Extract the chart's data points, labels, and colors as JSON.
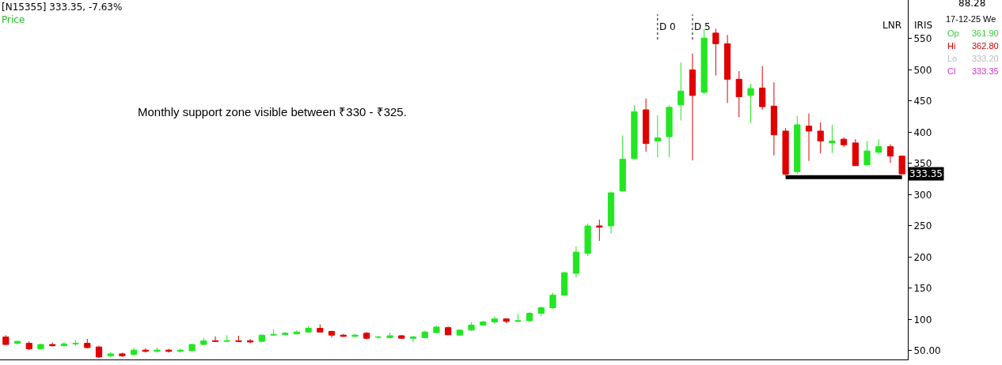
{
  "chart_data": {
    "type": "candlestick",
    "title": "[N15355] 333.35, -7.63%",
    "subtitle": "Price",
    "categories": [
      null,
      null,
      null,
      null,
      null,
      null,
      null,
      null,
      null,
      null,
      null,
      null,
      null,
      null,
      null,
      null,
      null,
      null,
      null,
      null,
      null,
      null,
      null,
      null,
      null,
      null,
      null,
      null,
      null,
      null,
      null,
      null,
      null,
      null,
      null,
      null,
      null,
      null,
      null,
      null,
      null,
      null,
      null,
      null,
      null,
      null,
      null,
      null,
      null,
      null,
      null,
      null,
      null,
      null,
      null,
      null,
      null,
      null,
      null,
      null,
      null,
      null,
      null,
      null,
      null,
      null,
      null,
      null,
      null,
      null,
      null,
      null,
      null,
      null,
      null,
      null,
      null,
      null
    ],
    "ohlc": [
      [
        72,
        75,
        59,
        60
      ],
      [
        62,
        66,
        60,
        65
      ],
      [
        62,
        65,
        51,
        53
      ],
      [
        53,
        61,
        52,
        60
      ],
      [
        60,
        63,
        57,
        58
      ],
      [
        58,
        64,
        57,
        61
      ],
      [
        61,
        67,
        58,
        62
      ],
      [
        62,
        69,
        54,
        55
      ],
      [
        56,
        58,
        38,
        40
      ],
      [
        42,
        48,
        40,
        45
      ],
      [
        45,
        47,
        40,
        42
      ],
      [
        44,
        55,
        42,
        51
      ],
      [
        51,
        54,
        47,
        49
      ],
      [
        49,
        55,
        47,
        51
      ],
      [
        51,
        53,
        47,
        49
      ],
      [
        49,
        53,
        47,
        51
      ],
      [
        50,
        61,
        49,
        60
      ],
      [
        60,
        71,
        59,
        66
      ],
      [
        66,
        73,
        64,
        65
      ],
      [
        65,
        75,
        64,
        66
      ],
      [
        66,
        74,
        64,
        65
      ],
      [
        66,
        69,
        62,
        64
      ],
      [
        65,
        76,
        64,
        75
      ],
      [
        75,
        84,
        74,
        76
      ],
      [
        76,
        80,
        75,
        78
      ],
      [
        77,
        83,
        76,
        80
      ],
      [
        80,
        89,
        79,
        86
      ],
      [
        86,
        92,
        79,
        80
      ],
      [
        81,
        82,
        71,
        75
      ],
      [
        75,
        77,
        72,
        73
      ],
      [
        73,
        77,
        72,
        75
      ],
      [
        78,
        80,
        68,
        70
      ],
      [
        71.5,
        74,
        70,
        72
      ],
      [
        71,
        79,
        71,
        74
      ],
      [
        74,
        75,
        69,
        70
      ],
      [
        70,
        74,
        64,
        72
      ],
      [
        71,
        82,
        70,
        80
      ],
      [
        79,
        90,
        78,
        88
      ],
      [
        87,
        89,
        75,
        75.5
      ],
      [
        75,
        84,
        74,
        83
      ],
      [
        83,
        96,
        82,
        91
      ],
      [
        91,
        98,
        90,
        96
      ],
      [
        96,
        105,
        93,
        101
      ],
      [
        101,
        102,
        94,
        97
      ],
      [
        97,
        109,
        97,
        98
      ],
      [
        98,
        112,
        97,
        110
      ],
      [
        110,
        121,
        105,
        119
      ],
      [
        119,
        143,
        117,
        139
      ],
      [
        139,
        177,
        138,
        175
      ],
      [
        174,
        217,
        167,
        208
      ],
      [
        206,
        254,
        202,
        250
      ],
      [
        250,
        260,
        226,
        248
      ],
      [
        250,
        305,
        238,
        303
      ],
      [
        306,
        395,
        305,
        357
      ],
      [
        358,
        443,
        357,
        433
      ],
      [
        436,
        454,
        369,
        382
      ],
      [
        386,
        427,
        360,
        391
      ],
      [
        393,
        443,
        360,
        440
      ],
      [
        444,
        512,
        419,
        466
      ],
      [
        500,
        526,
        355,
        459
      ],
      [
        464,
        566,
        461,
        551
      ],
      [
        559,
        566,
        491,
        542
      ],
      [
        542,
        556,
        447,
        485
      ],
      [
        485,
        498,
        424,
        457
      ],
      [
        459,
        478,
        415,
        470
      ],
      [
        471,
        506,
        436,
        441
      ],
      [
        442,
        480,
        363,
        396
      ],
      [
        402,
        407,
        331,
        333
      ],
      [
        337,
        426,
        333,
        412
      ],
      [
        410,
        430,
        354,
        402
      ],
      [
        402,
        416,
        366,
        386
      ],
      [
        383,
        412,
        367,
        386
      ],
      [
        389,
        392,
        376,
        380
      ],
      [
        383,
        389,
        346,
        346.5
      ],
      [
        348,
        386,
        347,
        370
      ],
      [
        368,
        389,
        365,
        377
      ],
      [
        377,
        381,
        351,
        362
      ],
      [
        361.9,
        362.8,
        333.2,
        333.35
      ]
    ],
    "colors": [
      "#e00000",
      "#22e622",
      "#e00000",
      "#22e622",
      "#e00000",
      "#22e622",
      "#22e622",
      "#e00000",
      "#e00000",
      "#22e622",
      "#e00000",
      "#22e622",
      "#e00000",
      "#22e622",
      "#e00000",
      "#22e622",
      "#22e622",
      "#22e622",
      "#e00000",
      "#22e622",
      "#e00000",
      "#e00000",
      "#22e622",
      "#22e622",
      "#22e622",
      "#22e622",
      "#22e622",
      "#e00000",
      "#e00000",
      "#e00000",
      "#22e622",
      "#e00000",
      "#22e622",
      "#22e622",
      "#e00000",
      "#22e622",
      "#22e622",
      "#22e622",
      "#e00000",
      "#22e622",
      "#22e622",
      "#22e622",
      "#22e622",
      "#e00000",
      "#22e622",
      "#22e622",
      "#22e622",
      "#22e622",
      "#22e622",
      "#22e622",
      "#22e622",
      "#e00000",
      "#22e622",
      "#22e622",
      "#22e622",
      "#e00000",
      "#22e622",
      "#22e622",
      "#22e622",
      "#e00000",
      "#22e622",
      "#e00000",
      "#e00000",
      "#e00000",
      "#22e622",
      "#e00000",
      "#e00000",
      "#e00000",
      "#22e622",
      "#e00000",
      "#e00000",
      "#22e622",
      "#e00000",
      "#e00000",
      "#22e622",
      "#22e622",
      "#e00000",
      "#e00000"
    ],
    "series": [
      {
        "type": "line",
        "values": [
          null,
          null,
          null,
          null,
          null,
          null,
          null,
          null,
          null,
          null,
          null,
          null,
          null,
          null,
          null,
          null,
          null,
          null,
          null,
          null,
          null,
          null,
          null,
          null,
          null,
          null,
          null,
          null,
          null,
          null,
          null,
          null,
          null,
          null,
          null,
          null,
          null,
          null,
          null,
          null,
          null,
          null,
          null,
          null,
          null,
          null,
          null,
          null,
          null,
          null,
          null,
          null,
          null,
          null,
          null,
          null,
          null,
          null,
          null,
          null,
          null,
          null,
          null,
          null,
          null,
          null,
          null,
          328,
          328,
          328,
          328,
          328,
          328,
          328,
          328,
          328,
          328,
          328
        ],
        "color": "#000000"
      }
    ],
    "ylim": [
      36,
      612
    ],
    "yticks": [
      {
        "value": 50,
        "label": "50.00"
      },
      100,
      150,
      200,
      250,
      300,
      350,
      400,
      450,
      500,
      550
    ],
    "tick_labels": "y",
    "annotations": [
      "333.35",
      "Monthly support zone visible between ₹330 - ₹325.",
      "D 0",
      "D 5",
      "LNR",
      "IRIS",
      "88.28",
      "17-12-25 We",
      "Op",
      "361.90",
      "Hi",
      "362.80",
      "Lo",
      "333.20",
      "Cl",
      "333.35"
    ]
  }
}
